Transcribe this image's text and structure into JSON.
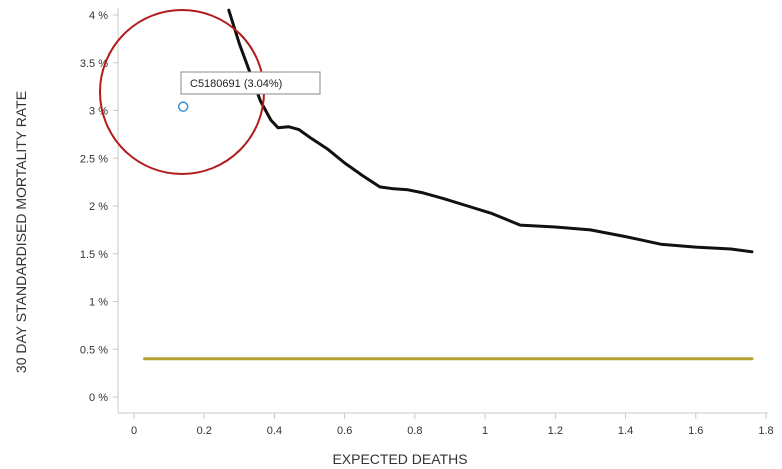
{
  "chart_data": {
    "type": "line",
    "xlabel": "EXPECTED DEATHS",
    "ylabel": "30 DAY STANDARDISED MORTALITY RATE",
    "xlim": [
      0,
      1.8
    ],
    "ylim": [
      0,
      4
    ],
    "x_ticks": [
      0,
      0.2,
      0.4,
      0.6,
      0.8,
      1,
      1.2,
      1.4,
      1.6,
      1.8
    ],
    "x_tick_labels": [
      "0",
      "0.2",
      "0.4",
      "0.6",
      "0.8",
      "1",
      "1.2",
      "1.4",
      "1.6",
      "1.8"
    ],
    "y_ticks": [
      0,
      0.5,
      1,
      1.5,
      2,
      2.5,
      3,
      3.5,
      4
    ],
    "y_tick_labels": [
      "0 %",
      "0.5 %",
      "1 %",
      "1.5 %",
      "2 %",
      "2.5 %",
      "3 %",
      "3.5 %",
      "4 %"
    ],
    "grid": false,
    "series": [
      {
        "color": "#111111",
        "x": [
          0.27,
          0.3,
          0.33,
          0.36,
          0.39,
          0.41,
          0.44,
          0.47,
          0.5,
          0.55,
          0.6,
          0.65,
          0.7,
          0.74,
          0.78,
          0.82,
          0.88,
          0.95,
          1.02,
          1.1,
          1.2,
          1.3,
          1.4,
          1.5,
          1.6,
          1.7,
          1.76
        ],
        "y": [
          4.05,
          3.7,
          3.4,
          3.1,
          2.9,
          2.82,
          2.83,
          2.8,
          2.72,
          2.6,
          2.45,
          2.32,
          2.2,
          2.18,
          2.17,
          2.14,
          2.08,
          2.0,
          1.92,
          1.8,
          1.78,
          1.75,
          1.68,
          1.6,
          1.57,
          1.55,
          1.52
        ]
      },
      {
        "color": "#b5a032",
        "x": [
          0.03,
          1.76
        ],
        "y": [
          0.4,
          0.4
        ]
      }
    ],
    "highlight_point": {
      "label": "C5180691 (3.04%)",
      "x": 0.14,
      "y": 3.04,
      "color": "#3a8ed4"
    },
    "highlight_circle_color": "#b31b1b"
  }
}
